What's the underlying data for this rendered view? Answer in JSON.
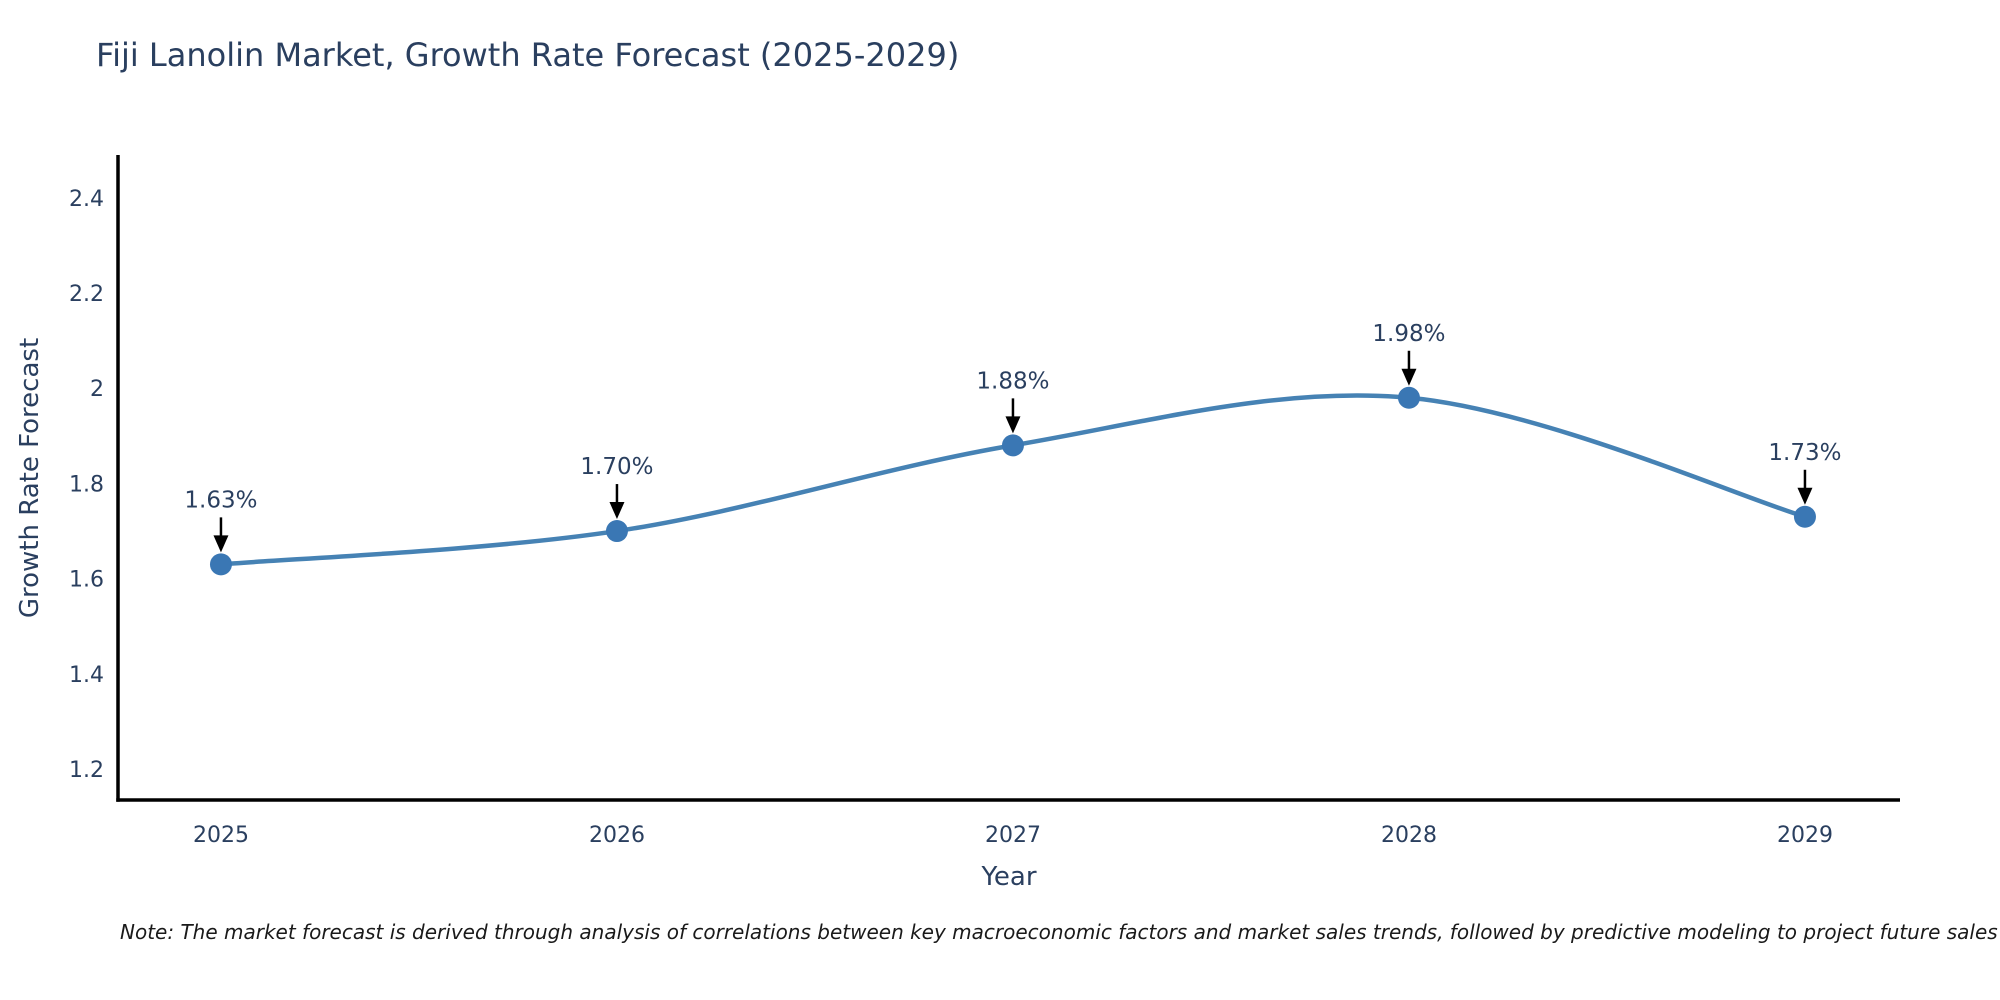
{
  "chart": {
    "title": "Fiji Lanolin Market, Growth Rate Forecast (2025-2029)",
    "xlabel": "Year",
    "ylabel": "Growth Rate Forecast",
    "note": "Note: The market forecast is derived through analysis of correlations between key macroeconomic factors and market sales trends, followed by predictive modeling to project future sales"
  },
  "chart_data": {
    "type": "line",
    "title": "Fiji Lanolin Market, Growth Rate Forecast (2025-2029)",
    "xlabel": "Year",
    "ylabel": "Growth Rate Forecast",
    "x": [
      2025,
      2026,
      2027,
      2028,
      2029
    ],
    "values": [
      1.63,
      1.7,
      1.88,
      1.98,
      1.73
    ],
    "point_labels": [
      "1.63%",
      "1.70%",
      "1.88%",
      "1.98%",
      "1.73%"
    ],
    "xtick_labels": [
      "2025",
      "2026",
      "2027",
      "2028",
      "2029"
    ],
    "yticks": [
      1.2,
      1.4,
      1.6,
      1.8,
      2.0,
      2.2,
      2.4
    ],
    "ytick_labels": [
      "1.2",
      "1.4",
      "1.6",
      "1.8",
      "2",
      "2.2",
      "2.4"
    ],
    "xlim": [
      2024.74,
      2029.24
    ],
    "ylim": [
      1.135,
      2.49
    ],
    "grid": false,
    "legend": null,
    "line_shape": "spline",
    "colors": {
      "line": "#4682b4",
      "marker": "#3a77b4",
      "arrow": "#000000",
      "axis": "#000000",
      "text": "#2a3f5f",
      "note_text": "#1a1a1a",
      "background": "#ffffff"
    }
  }
}
